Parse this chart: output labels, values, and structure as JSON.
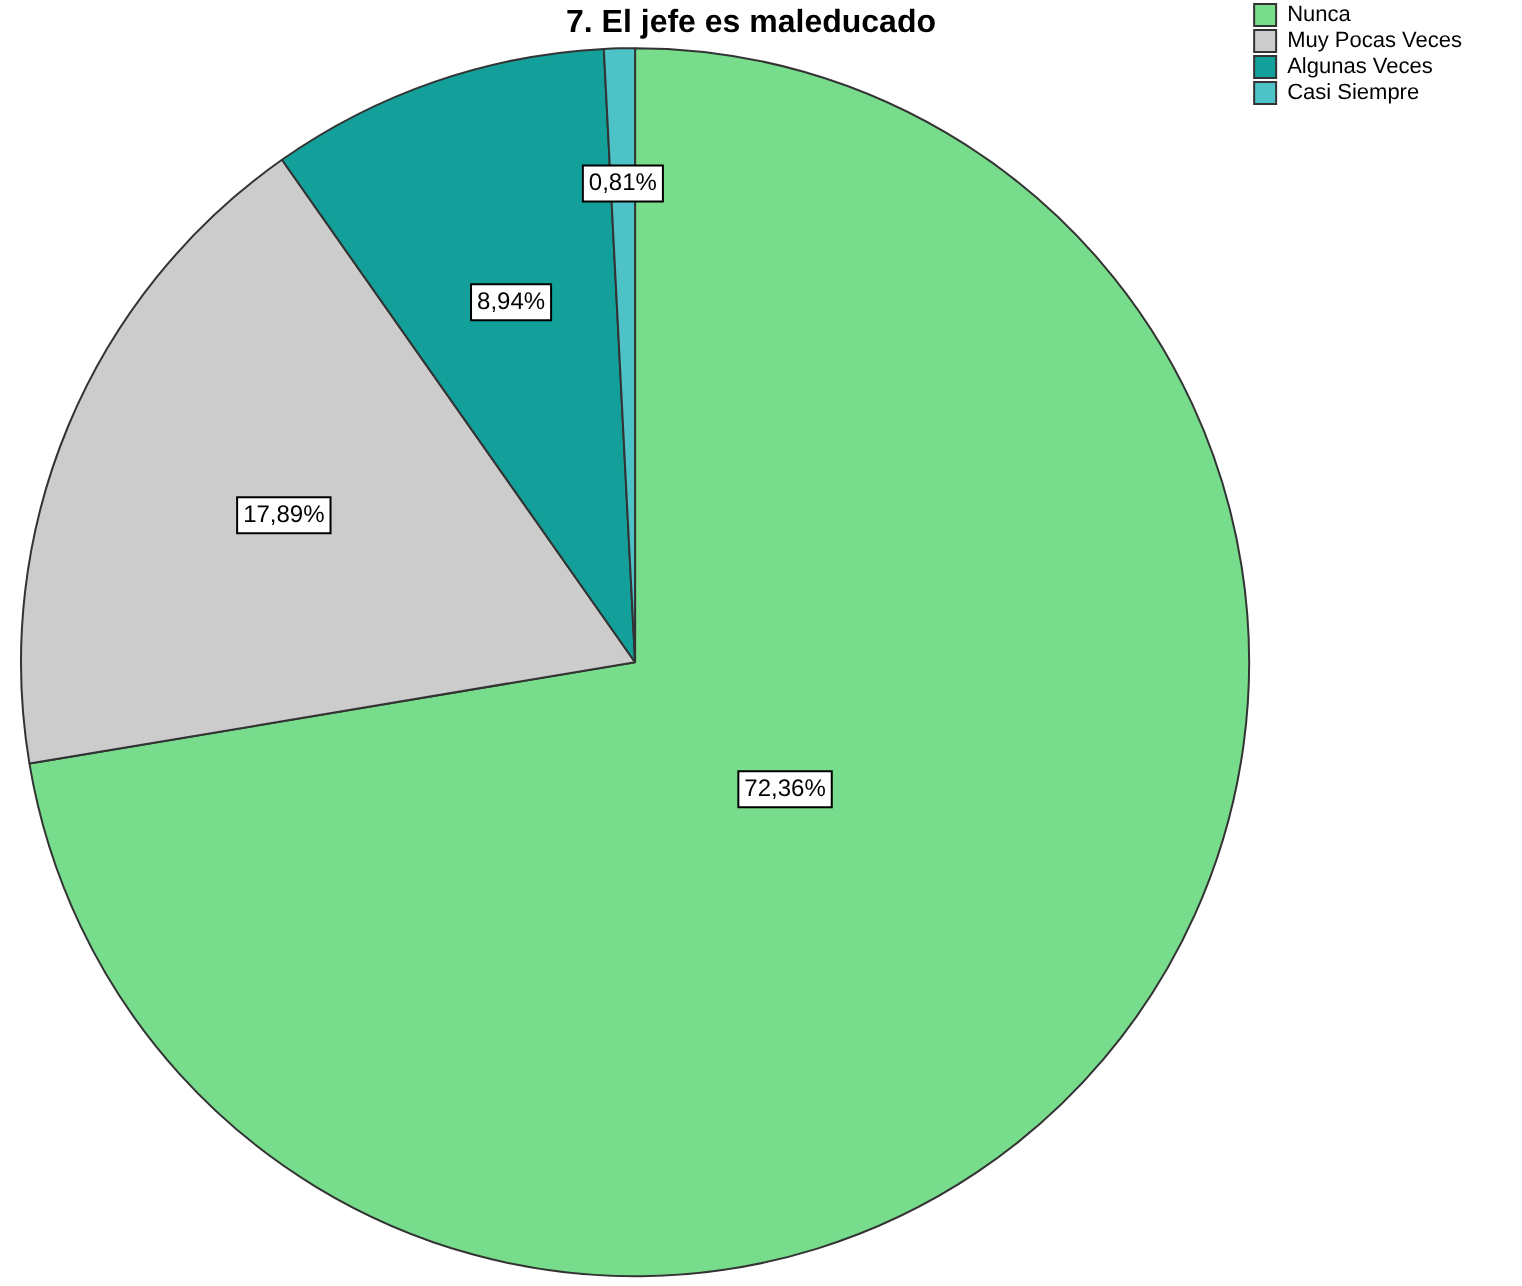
{
  "chart_data": {
    "type": "pie",
    "title": "7. El jefe es maleducado",
    "categories": [
      "Nunca",
      "Muy Pocas Veces",
      "Algunas Veces",
      "Casi Siempre"
    ],
    "values": [
      72.36,
      17.89,
      8.94,
      0.81
    ],
    "colors": [
      "#77dc8b",
      "#cccccc",
      "#13a09a",
      "#4dc3c8"
    ],
    "value_labels": [
      "72,36%",
      "17,89%",
      "8,94%",
      "0,81%"
    ],
    "legend": "top right"
  }
}
